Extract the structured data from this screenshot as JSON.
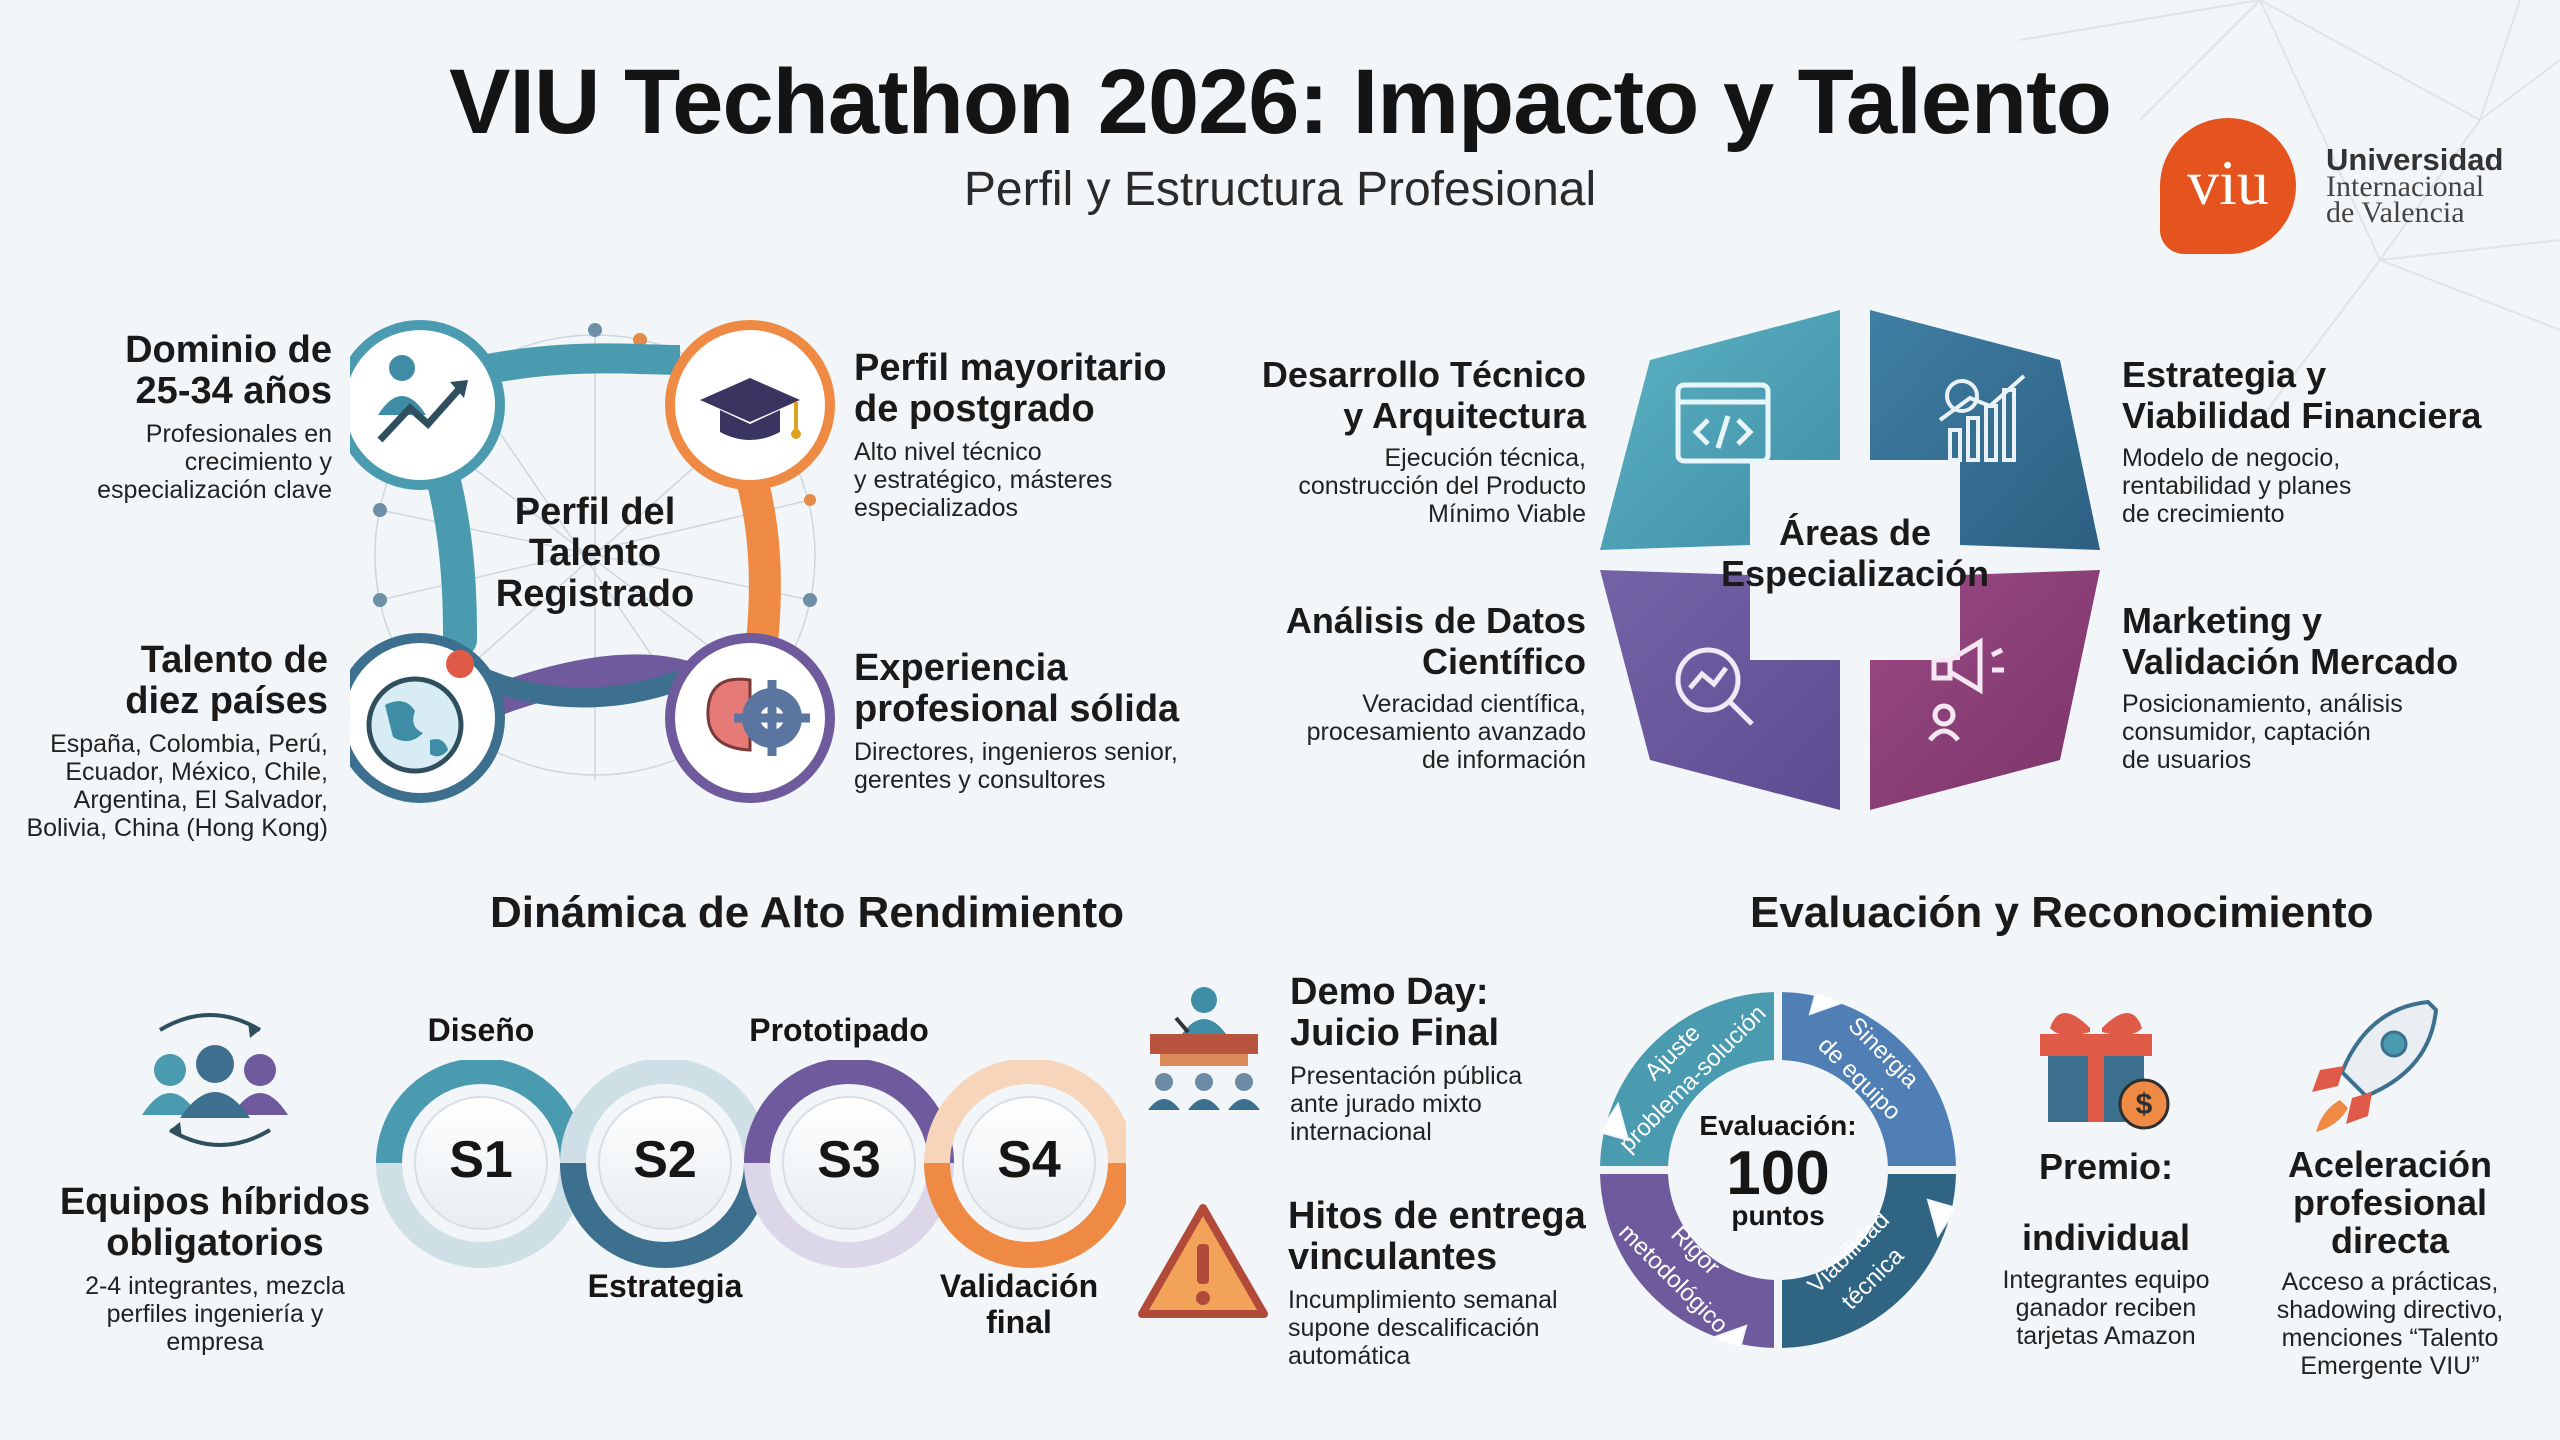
{
  "header": {
    "title": "VIU Techathon 2026: Impacto y Talento",
    "subtitle": "Perfil y Estructura Profesional"
  },
  "logo": {
    "mark": "viu",
    "line1": "Universidad",
    "line2": "Internacional",
    "line3": "de Valencia",
    "color": "#e5531e"
  },
  "talent_profile": {
    "center_l1": "Perfil del",
    "center_l2": "Talento",
    "center_l3": "Registrado",
    "age": {
      "title_l1": "Dominio de",
      "title_l2": "25-34 años",
      "text_l1": "Profesionales en",
      "text_l2": "crecimiento y",
      "text_l3": "especialización clave",
      "icon": "growth-chart-icon"
    },
    "postgrad": {
      "title_l1": "Perfil mayoritario",
      "title_l2": "de postgrado",
      "text_l1": "Alto nivel técnico",
      "text_l2": "y estratégico, másteres",
      "text_l3": "especializados",
      "icon": "graduation-cap-icon"
    },
    "countries": {
      "title_l1": "Talento de",
      "title_l2": "diez países",
      "text_l1": "España, Colombia, Perú,",
      "text_l2": "Ecuador, México, Chile,",
      "text_l3": "Argentina, El Salvador,",
      "text_l4": "Bolivia, China (Hong Kong)",
      "icon": "globe-icon"
    },
    "experience": {
      "title_l1": "Experiencia",
      "title_l2": "profesional sólida",
      "text_l1": "Directores, ingenieros senior,",
      "text_l2": "gerentes y consultores",
      "icon": "brain-gear-icon"
    }
  },
  "areas": {
    "center_l1": "Áreas de",
    "center_l2": "Especialización",
    "tech": {
      "title_l1": "Desarrollo Técnico",
      "title_l2": "y Arquitectura",
      "text_l1": "Ejecución técnica,",
      "text_l2": "construcción del Producto",
      "text_l3": "Mínimo Viable",
      "icon": "code-window-icon"
    },
    "finance": {
      "title_l1": "Estrategia y",
      "title_l2": "Viabilidad Financiera",
      "text_l1": "Modelo de negocio,",
      "text_l2": "rentabilidad y planes",
      "text_l3": "de crecimiento",
      "icon": "finance-chart-icon"
    },
    "data": {
      "title_l1": "Análisis de Datos",
      "title_l2": "Científico",
      "text_l1": "Veracidad científica,",
      "text_l2": "procesamiento avanzado",
      "text_l3": "de información",
      "icon": "data-magnifier-icon"
    },
    "marketing": {
      "title_l1": "Marketing y",
      "title_l2": "Validación Mercado",
      "text_l1": "Posicionamiento, análisis",
      "text_l2": "consumidor, captación",
      "text_l3": "de usuarios",
      "icon": "megaphone-icon"
    }
  },
  "dynamics": {
    "title": "Dinámica de Alto Rendimiento",
    "teams": {
      "title_l1": "Equipos híbridos",
      "title_l2": "obligatorios",
      "text_l1": "2-4 integrantes, mezcla",
      "text_l2": "perfiles ingeniería y",
      "text_l3": "empresa",
      "icon": "team-icon"
    },
    "sprints": [
      {
        "code": "S1",
        "label": "Diseño"
      },
      {
        "code": "S2",
        "label": "Estrategia"
      },
      {
        "code": "S3",
        "label": "Prototipado"
      },
      {
        "code": "S4",
        "label_l1": "Validación",
        "label_l2": "final"
      }
    ],
    "demo": {
      "title_l1": "Demo Day:",
      "title_l2": "Juicio Final",
      "text_l1": "Presentación pública",
      "text_l2": "ante jurado mixto",
      "text_l3": "internacional",
      "icon": "podium-icon"
    },
    "milestones": {
      "title_l1": "Hitos de entrega",
      "title_l2": "vinculantes",
      "text_l1": "Incumplimiento semanal",
      "text_l2": "supone descalificación",
      "text_l3": "automática",
      "icon": "warning-icon"
    }
  },
  "evaluation": {
    "title": "Evaluación y Reconocimiento",
    "center_label": "Evaluación:",
    "points": "100",
    "points_label": "puntos",
    "segments": [
      {
        "l1": "Ajuste",
        "l2": "problema-solución"
      },
      {
        "l1": "Sinergia",
        "l2": "de equipo"
      },
      {
        "l1": "Viabilidad",
        "l2": "técnica"
      },
      {
        "l1": "Rigor",
        "l2": "metodológico"
      }
    ],
    "prize": {
      "title": "Premio:",
      "title2": "individual",
      "text_l1": "Integrantes equipo",
      "text_l2": "ganador reciben",
      "text_l3": "tarjetas Amazon",
      "icon": "gift-icon"
    },
    "acceleration": {
      "title_l1": "Aceleración",
      "title_l2": "profesional",
      "title_l3": "directa",
      "text_l1": "Acceso a prácticas,",
      "text_l2": "shadowing directivo,",
      "text_l3": "menciones “Talento",
      "text_l4": "Emergente VIU”",
      "icon": "rocket-icon"
    }
  },
  "colors": {
    "teal": "#4a9ab0",
    "blue": "#3d6f8f",
    "orange": "#ee8a44",
    "purple": "#6e5a9c",
    "magenta": "#8e3f78"
  }
}
